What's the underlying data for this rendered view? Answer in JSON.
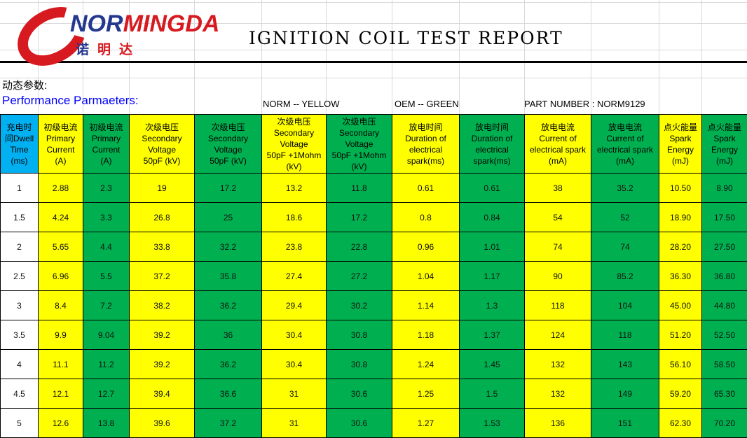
{
  "header": {
    "brand": {
      "wordmark_blue": "NOR",
      "wordmark_red": "MINGDA",
      "chinese": [
        "诺",
        "明",
        "达"
      ]
    },
    "title": "IGNITION COIL TEST REPORT"
  },
  "meta": {
    "dynamic_params_label": "动态参数:",
    "performance_label": "Performance Parmaeters:",
    "norm_legend": "NORM -- YELLOW",
    "oem_legend": "OEM -- GREEN",
    "part_number": "PART NUMBER : NORM9129"
  },
  "colors": {
    "norm_yellow": "#FFFF00",
    "oem_green": "#00B050",
    "dwell_header_blue": "#00B0F0",
    "brand_red": "#D71920",
    "brand_blue": "#24388F",
    "performance_text_blue": "#0000FF"
  },
  "table": {
    "columns": [
      {
        "label": "充电时\n间Dwell\nTime\n(ms)",
        "scheme": "dwell"
      },
      {
        "label": "初级电流\nPrimary\nCurrent\n(A)",
        "scheme": "norm"
      },
      {
        "label": "初级电流\nPrimary\nCurrent\n(A)",
        "scheme": "oem"
      },
      {
        "label": "次级电压\nSecondary\nVoltage\n50pF (kV)",
        "scheme": "norm"
      },
      {
        "label": "次级电压\nSecondary\nVoltage\n50pF (kV)",
        "scheme": "oem"
      },
      {
        "label": "次级电压\nSecondary\nVoltage\n50pF +1Mohm\n(kV)",
        "scheme": "norm"
      },
      {
        "label": "次级电压\nSecondary\nVoltage\n50pF +1Mohm\n(kV)",
        "scheme": "oem"
      },
      {
        "label": "放电时间\nDuration of\nelectrical\nspark(ms)",
        "scheme": "norm"
      },
      {
        "label": "放电时间\nDuration of\nelectrical\nspark(ms)",
        "scheme": "oem"
      },
      {
        "label": "放电电流\nCurrent of\nelectrical spark\n(mA)",
        "scheme": "norm"
      },
      {
        "label": "放电电流\nCurrent of\nelectrical spark\n(mA)",
        "scheme": "oem"
      },
      {
        "label": "点火能量\nSpark\nEnergy\n(mJ)",
        "scheme": "norm"
      },
      {
        "label": "点火能量\nSpark\nEnergy\n(mJ)",
        "scheme": "oem"
      }
    ],
    "rows": [
      [
        "1",
        "2.88",
        "2.3",
        "19",
        "17.2",
        "13.2",
        "11.8",
        "0.61",
        "0.61",
        "38",
        "35.2",
        "10.50",
        "8.90"
      ],
      [
        "1.5",
        "4.24",
        "3.3",
        "26.8",
        "25",
        "18.6",
        "17.2",
        "0.8",
        "0.84",
        "54",
        "52",
        "18.90",
        "17.50"
      ],
      [
        "2",
        "5.65",
        "4.4",
        "33.8",
        "32.2",
        "23.8",
        "22.8",
        "0.96",
        "1.01",
        "74",
        "74",
        "28.20",
        "27.50"
      ],
      [
        "2.5",
        "6.96",
        "5.5",
        "37.2",
        "35.8",
        "27.4",
        "27.2",
        "1.04",
        "1.17",
        "90",
        "85.2",
        "36.30",
        "36.80"
      ],
      [
        "3",
        "8.4",
        "7.2",
        "38.2",
        "36.2",
        "29.4",
        "30.2",
        "1.14",
        "1.3",
        "118",
        "104",
        "45.00",
        "44.80"
      ],
      [
        "3.5",
        "9.9",
        "9.04",
        "39.2",
        "36",
        "30.4",
        "30.8",
        "1.18",
        "1.37",
        "124",
        "118",
        "51.20",
        "52.50"
      ],
      [
        "4",
        "11.1",
        "11.2",
        "39.2",
        "36.2",
        "30.4",
        "30.8",
        "1.24",
        "1.45",
        "132",
        "143",
        "56.10",
        "58.50"
      ],
      [
        "4.5",
        "12.1",
        "12.7",
        "39.4",
        "36.6",
        "31",
        "30.6",
        "1.25",
        "1.5",
        "132",
        "149",
        "59.20",
        "65.30"
      ],
      [
        "5",
        "12.6",
        "13.8",
        "39.6",
        "37.2",
        "31",
        "30.6",
        "1.27",
        "1.53",
        "136",
        "151",
        "62.30",
        "70.20"
      ]
    ]
  }
}
